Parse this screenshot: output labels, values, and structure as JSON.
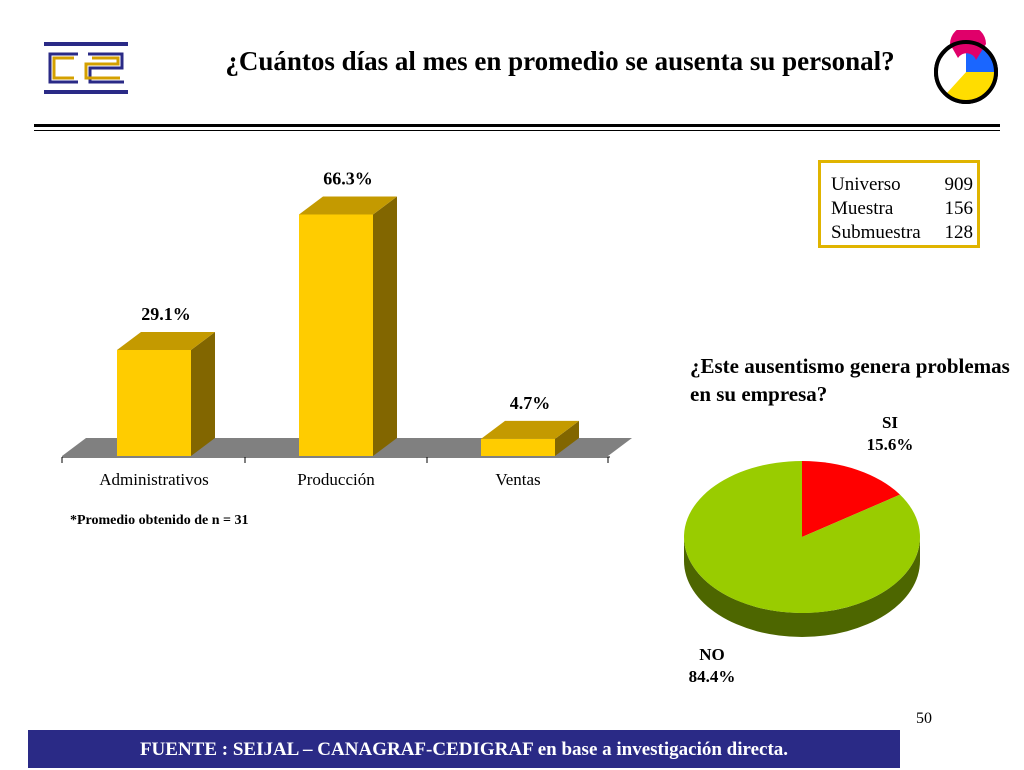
{
  "page": {
    "title": "¿Cuántos días al mes en promedio se ausenta su personal?",
    "footnote": "*Promedio obtenido de  n = 31",
    "page_number": "50",
    "source": "FUENTE :  SEIJAL – CANAGRAF-CEDIGRAF en base a investigación directa."
  },
  "sample": {
    "rows": [
      {
        "label": "Universo",
        "value": "909"
      },
      {
        "label": "Muestra",
        "value": "156"
      },
      {
        "label": "Submuestra",
        "value": "128"
      }
    ]
  },
  "chart_data": [
    {
      "type": "bar",
      "title": "¿Cuántos días al mes en promedio se ausenta su personal?",
      "categories": [
        "Administrativos",
        "Producción",
        "Ventas"
      ],
      "values": [
        29.1,
        66.3,
        4.7
      ],
      "data_labels": [
        "29.1%",
        "66.3%",
        "4.7%"
      ],
      "unit": "%",
      "ylim": [
        0,
        70
      ],
      "grid": false,
      "colors": {
        "front": "#ffcc00",
        "top": "#c49a00",
        "side": "#826600",
        "floor": "#808080"
      }
    },
    {
      "type": "pie",
      "title": "¿Este ausentismo genera problemas en su empresa?",
      "labels": [
        "SI",
        "NO"
      ],
      "values": [
        15.6,
        84.4
      ],
      "data_labels": [
        "15.6%",
        "84.4%"
      ],
      "colors": [
        "#ff0000",
        "#99cc00"
      ],
      "side_colors": [
        "#990000",
        "#4d6600"
      ]
    }
  ]
}
